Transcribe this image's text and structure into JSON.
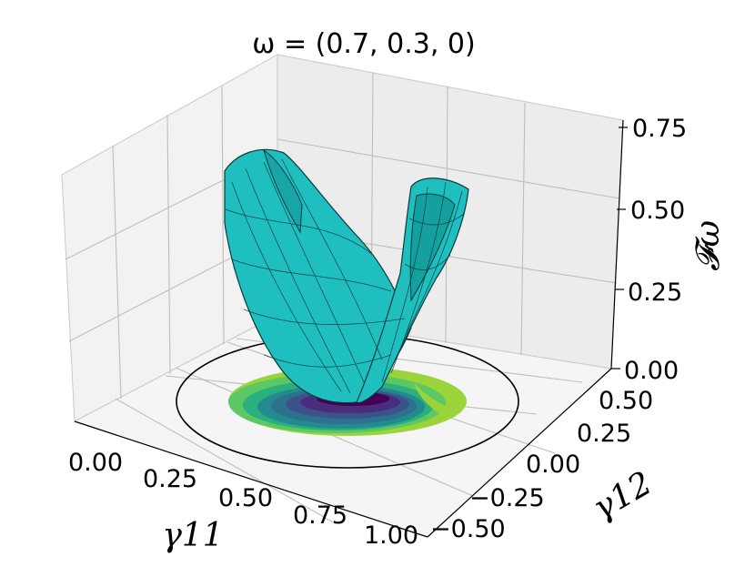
{
  "chart_data": {
    "type": "surface3d",
    "title": "ω = (0.7, 0.3, 0)",
    "xlabel": "γ11",
    "ylabel": "γ12",
    "zlabel": "𝓕ω",
    "x_ticks": [
      "0.00",
      "0.25",
      "0.50",
      "0.75",
      "1.00"
    ],
    "y_ticks": [
      "−0.50",
      "−0.25",
      "0.00",
      "0.25",
      "0.50"
    ],
    "z_ticks": [
      "0.00",
      "0.25",
      "0.50",
      "0.75"
    ],
    "xlim": [
      0,
      1
    ],
    "ylim": [
      -0.5,
      0.5
    ],
    "zlim": [
      0,
      0.75
    ],
    "grid": true,
    "surface_color": "#1fbfbf",
    "contour_colormap": "viridis",
    "boundary": "circle"
  }
}
